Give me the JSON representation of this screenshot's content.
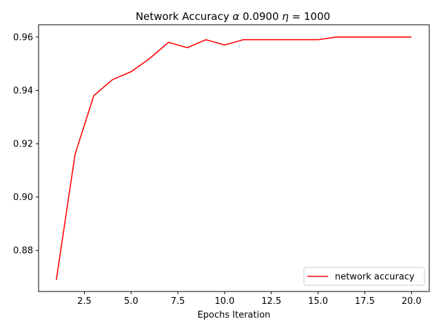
{
  "chart_data": {
    "type": "line",
    "title_prefix": "Network Accuracy ",
    "title_alpha_symbol": "α",
    "title_alpha_value": " 0.0900 ",
    "title_eta_symbol": "η",
    "title_eta_value": " = 1000",
    "xlabel": "Epochs Iteration",
    "ylabel": "",
    "xlim": [
      0.05,
      20.95
    ],
    "ylim": [
      0.8646,
      0.9646
    ],
    "xticks": [
      2.5,
      5.0,
      7.5,
      10.0,
      12.5,
      15.0,
      17.5,
      20.0
    ],
    "xtick_labels": [
      "2.5",
      "5.0",
      "7.5",
      "10.0",
      "12.5",
      "15.0",
      "17.5",
      "20.0"
    ],
    "yticks": [
      0.88,
      0.9,
      0.92,
      0.94,
      0.96
    ],
    "ytick_labels": [
      "0.88",
      "0.90",
      "0.92",
      "0.94",
      "0.96"
    ],
    "grid": false,
    "legend_position": "lower-right",
    "series": [
      {
        "name": "network accuracy",
        "color": "#ff0000",
        "x": [
          1,
          2,
          3,
          4,
          5,
          6,
          7,
          8,
          9,
          10,
          11,
          12,
          13,
          14,
          15,
          16,
          17,
          18,
          19,
          20
        ],
        "y": [
          0.869,
          0.916,
          0.938,
          0.944,
          0.947,
          0.952,
          0.958,
          0.956,
          0.959,
          0.957,
          0.959,
          0.959,
          0.959,
          0.959,
          0.959,
          0.96,
          0.96,
          0.96,
          0.96,
          0.96
        ]
      }
    ]
  }
}
